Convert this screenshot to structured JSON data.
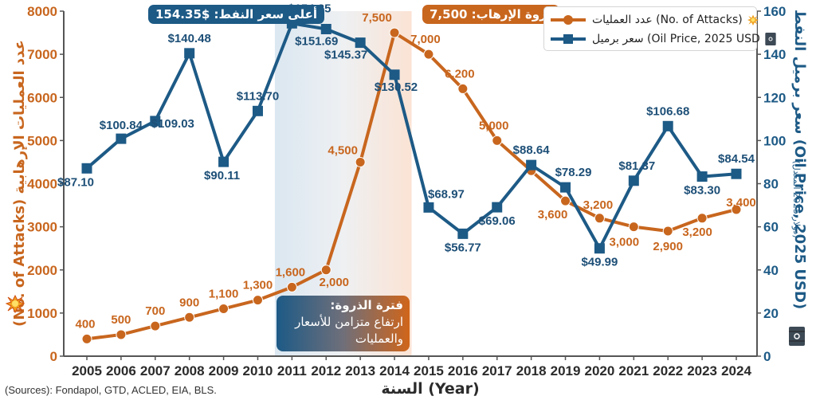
{
  "chart_data": {
    "type": "line",
    "title": "",
    "xlabel": "السنة (Year)",
    "ylabel_left": "عدد العمليات الإرهابية (No. of Attacks)",
    "ylabel_right": "سعر برميل النفط (Oil Price, 2025 USD)",
    "ylabel_right_note": "(دولار 2025 المعدل)",
    "x": [
      2005,
      2006,
      2007,
      2008,
      2009,
      2010,
      2011,
      2012,
      2013,
      2014,
      2015,
      2016,
      2017,
      2018,
      2019,
      2020,
      2021,
      2022,
      2023,
      2024
    ],
    "ylim_left": [
      0,
      8000
    ],
    "yticks_left": [
      0,
      1000,
      2000,
      3000,
      4000,
      5000,
      6000,
      7000,
      8000
    ],
    "ylim_right": [
      0,
      160
    ],
    "yticks_right": [
      0,
      20,
      40,
      60,
      80,
      100,
      120,
      140,
      160
    ],
    "grid": false,
    "legend_position": "top-right",
    "series": [
      {
        "name": "عدد العمليات (No. of Attacks)",
        "axis": "left",
        "color": "#c8661e",
        "marker": "circle",
        "values": [
          400,
          500,
          700,
          900,
          1100,
          1300,
          1600,
          2000,
          4500,
          7500,
          7000,
          6200,
          5000,
          4300,
          3600,
          3200,
          3000,
          2900,
          3200,
          3400
        ],
        "labels": [
          "400",
          "500",
          "700",
          "900",
          "1,100",
          "1,300",
          "1,600",
          "2,000",
          "4,500",
          "7,500",
          "7,000",
          "6,200",
          "5,000",
          "",
          "3,600",
          "3,200",
          "3,000",
          "2,900",
          "3,200",
          "3,400"
        ]
      },
      {
        "name": "سعر برميل (Oil Price, 2025 USD",
        "axis": "right",
        "color": "#1d5a86",
        "marker": "square",
        "values": [
          87.1,
          100.84,
          109.03,
          140.48,
          90.11,
          113.7,
          154.35,
          151.69,
          145.37,
          130.52,
          68.97,
          56.77,
          69.06,
          88.64,
          78.29,
          49.99,
          81.37,
          106.68,
          83.3,
          84.54
        ],
        "labels": [
          "$87.10",
          "$100.84",
          "$109.03",
          "$140.48",
          "$90.11",
          "$113.70",
          "$154.35",
          "$151.69",
          "$145.37",
          "$130.52",
          "$68.97",
          "$56.77",
          "$69.06",
          "$88.64",
          "$78.29",
          "$49.99",
          "$81.37",
          "$106.68",
          "$83.30",
          "$84.54"
        ]
      }
    ],
    "shaded_range": [
      2010.5,
      2014.5
    ],
    "annotations": {
      "oil_peak": "أعلى سعر النفط: $154.35",
      "attack_peak": "ذروة الإرهاب: 7,500",
      "peak_period_title": "فترة الذروة:",
      "peak_period_line1": "ارتفاع متزامن للأسعار",
      "peak_period_line2": "والعمليات"
    },
    "source": "(Sources): Fondapol, GTD, ACLED, EIA, BLS."
  },
  "legend": {
    "attacks": "عدد العمليات (No. of Attacks)",
    "oil": "سعر برميل (Oil Price, 2025 USD",
    "attacks_icon": "explosion-icon",
    "oil_icon": "oil-barrel-icon"
  }
}
